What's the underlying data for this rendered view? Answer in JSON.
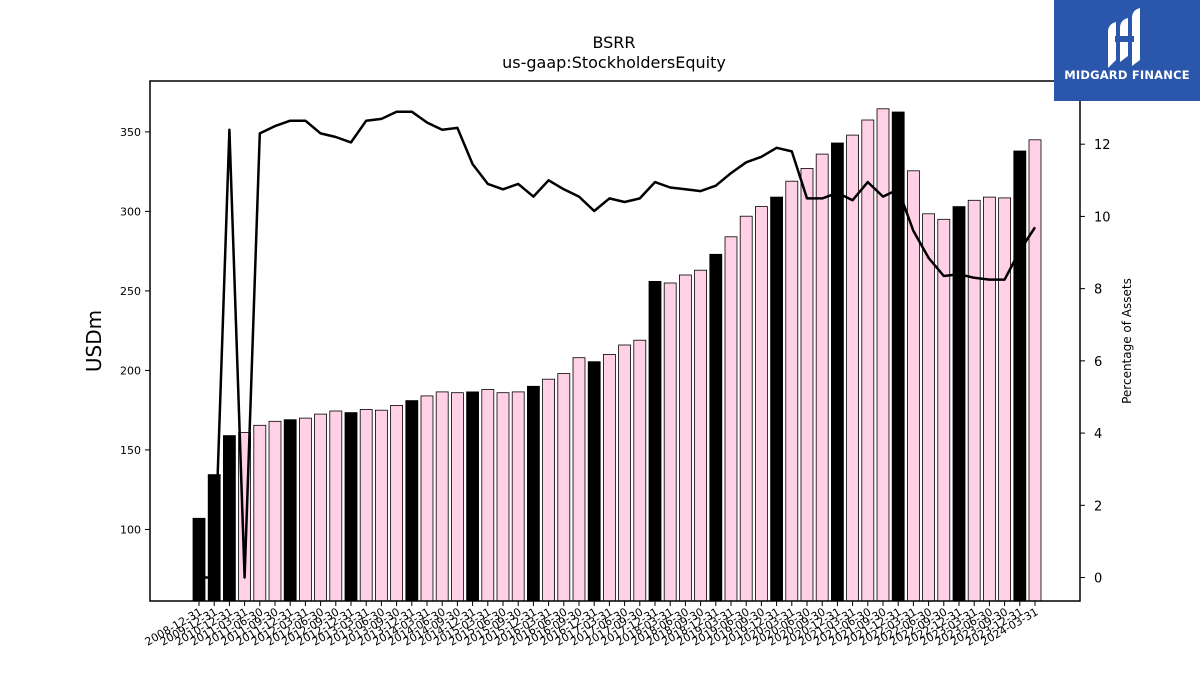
{
  "logo": {
    "text": "MIDGARD FINANCE",
    "background": "#2a56ac"
  },
  "chart_data": {
    "type": "bar",
    "title": "BSRR",
    "subtitle": "us-gaap:StockholdersEquity",
    "ylabel": "USDm",
    "y2label": "Percentage of Assets",
    "ylim": [
      55,
      382
    ],
    "y2lim": [
      -0.65,
      13.75
    ],
    "yticks": [
      100,
      150,
      200,
      250,
      300,
      350
    ],
    "y2ticks": [
      0,
      2,
      4,
      6,
      8,
      10,
      12
    ],
    "categories": [
      "2008-12-31",
      "2009-12-31",
      "2010-12-31",
      "2011-03-31",
      "2011-06-30",
      "2011-09-30",
      "2011-12-31",
      "2012-03-31",
      "2012-06-30",
      "2012-09-30",
      "2012-12-31",
      "2013-03-31",
      "2013-06-30",
      "2013-09-30",
      "2013-12-31",
      "2014-03-31",
      "2014-06-30",
      "2014-09-30",
      "2014-12-31",
      "2015-03-31",
      "2015-06-30",
      "2015-09-30",
      "2015-12-31",
      "2016-03-31",
      "2016-06-30",
      "2016-09-30",
      "2016-12-31",
      "2017-03-31",
      "2017-06-30",
      "2017-09-30",
      "2017-12-31",
      "2018-03-31",
      "2018-06-30",
      "2018-09-30",
      "2018-12-31",
      "2019-03-31",
      "2019-06-30",
      "2019-09-30",
      "2019-12-31",
      "2020-03-31",
      "2020-06-30",
      "2020-09-30",
      "2020-12-31",
      "2021-03-31",
      "2021-06-30",
      "2021-09-30",
      "2021-12-31",
      "2022-03-31",
      "2022-06-30",
      "2022-09-30",
      "2022-12-31",
      "2023-03-31",
      "2023-06-30",
      "2023-09-30",
      "2023-12-31",
      "2024-03-31"
    ],
    "xtick_labels": [
      "2008-12-31",
      "2009-12-31",
      "2010-12-31",
      "2011-03-31",
      "2011-06-30",
      "2011-09-30",
      "2011-12-31",
      "2012-03-31",
      "2012-06-30",
      "2012-09-30",
      "2012-12-31",
      "2013-03-31",
      "2013-06-30",
      "2013-09-30",
      "2013-12-31",
      "2014-03-31",
      "2014-06-30",
      "2014-09-30",
      "2014-12-31",
      "2015-03-31",
      "2015-06-30",
      "2015-09-30",
      "2015-12-31",
      "2016-03-31",
      "2016-06-30",
      "2016-09-30",
      "2016-12-31",
      "2017-03-31",
      "2017-06-30",
      "2017-09-30",
      "2017-12-31",
      "2018-03-31",
      "2018-06-30",
      "2018-09-30",
      "2018-12-31",
      "2019-03-31",
      "2019-06-30",
      "2019-09-30",
      "2019-12-31",
      "2020-03-31",
      "2020-06-30",
      "2020-09-30",
      "2020-12-31",
      "2021-03-31",
      "2021-06-30",
      "2021-09-30",
      "2021-12-31",
      "2022-03-31",
      "2022-06-30",
      "2022-09-30",
      "2022-12-31",
      "2023-03-31",
      "2023-06-30",
      "2023-09-30",
      "2023-12-31",
      "2024-03-31"
    ],
    "series": [
      {
        "type": "bar",
        "axis": "left",
        "values": [
          107,
          134.5,
          159,
          161,
          165.5,
          168,
          169,
          170,
          172.5,
          174.5,
          173.5,
          175.5,
          175,
          178,
          181,
          184,
          186.5,
          186,
          186.5,
          188,
          186,
          186.5,
          190,
          194.5,
          198,
          208,
          205.5,
          210,
          216,
          219,
          256,
          255,
          260,
          263,
          273,
          284,
          297,
          303,
          309,
          319,
          327,
          336,
          343,
          348,
          357.5,
          364.5,
          362.5,
          325.5,
          298.5,
          295,
          303,
          307,
          309,
          308.5,
          338,
          345
        ],
        "annual": [
          true,
          true,
          true,
          false,
          false,
          false,
          true,
          false,
          false,
          false,
          true,
          false,
          false,
          false,
          true,
          false,
          false,
          false,
          true,
          false,
          false,
          false,
          true,
          false,
          false,
          false,
          true,
          false,
          false,
          false,
          true,
          false,
          false,
          false,
          true,
          false,
          false,
          false,
          true,
          false,
          false,
          false,
          true,
          false,
          false,
          false,
          true,
          false,
          false,
          false,
          true,
          false,
          false,
          false,
          true,
          false
        ],
        "annual_color": "#000000",
        "quarter_color": "#ffd0e6"
      },
      {
        "type": "line",
        "axis": "right",
        "color": "#000000",
        "values": [
          0,
          0,
          12.4,
          0,
          12.3,
          12.5,
          12.65,
          12.65,
          12.3,
          12.2,
          12.05,
          12.65,
          12.7,
          12.9,
          12.9,
          12.6,
          12.4,
          12.45,
          11.45,
          10.9,
          10.75,
          10.9,
          10.55,
          11.0,
          10.75,
          10.55,
          10.15,
          10.5,
          10.4,
          10.5,
          10.95,
          10.8,
          10.75,
          10.7,
          10.85,
          11.2,
          11.5,
          11.65,
          11.9,
          11.8,
          10.5,
          10.5,
          10.65,
          10.45,
          10.95,
          10.55,
          10.75,
          9.6,
          8.85,
          8.35,
          8.4,
          8.3,
          8.25,
          8.25,
          9.05,
          9.7
        ]
      }
    ]
  }
}
